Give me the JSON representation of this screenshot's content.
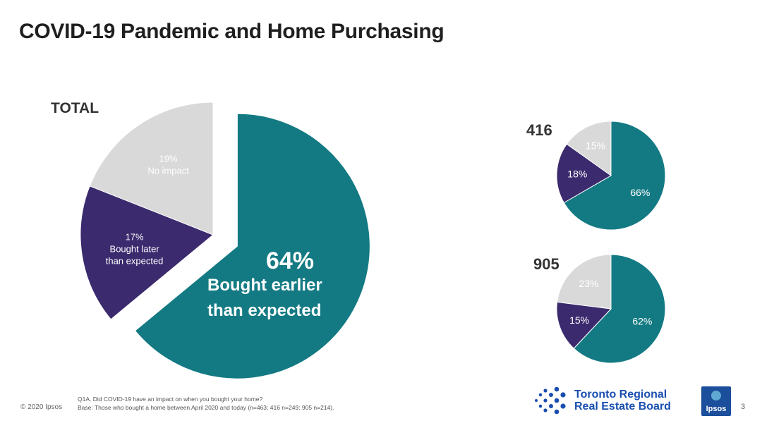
{
  "title": "COVID-19 Pandemic and Home Purchasing",
  "colors": {
    "teal": "#137a83",
    "purple": "#3b2a6e",
    "gray": "#d9d9d9"
  },
  "chart_data": [
    {
      "type": "pie",
      "title": "TOTAL",
      "slices": [
        {
          "label": "Bought earlier than expected",
          "value": 64,
          "display": "64%",
          "color": "#137a83",
          "exploded": true
        },
        {
          "label": "Bought later than expected",
          "value": 17,
          "display": "17%",
          "color": "#3b2a6e",
          "exploded": false
        },
        {
          "label": "No impact",
          "value": 19,
          "display": "19%",
          "color": "#d9d9d9",
          "exploded": false
        }
      ]
    },
    {
      "type": "pie",
      "title": "416",
      "slices": [
        {
          "value": 66,
          "display": "66%",
          "color": "#137a83"
        },
        {
          "value": 18,
          "display": "18%",
          "color": "#3b2a6e"
        },
        {
          "value": 15,
          "display": "15%",
          "color": "#d9d9d9"
        }
      ]
    },
    {
      "type": "pie",
      "title": "905",
      "slices": [
        {
          "value": 62,
          "display": "62%",
          "color": "#137a83"
        },
        {
          "value": 15,
          "display": "15%",
          "color": "#3b2a6e"
        },
        {
          "value": 23,
          "display": "23%",
          "color": "#d9d9d9"
        }
      ]
    }
  ],
  "footer": {
    "copyright": "© 2020 Ipsos",
    "question": "Q1A. Did COVID-19 have an impact on when you bought your home?",
    "base": "Base: Those who bought a home between April 2020 and today (n=463; 416 n=249; 905 n=214).",
    "page_number": "3"
  },
  "logos": {
    "trreb_line1": "Toronto Regional",
    "trreb_line2": "Real Estate Board",
    "ipsos": "Ipsos"
  }
}
